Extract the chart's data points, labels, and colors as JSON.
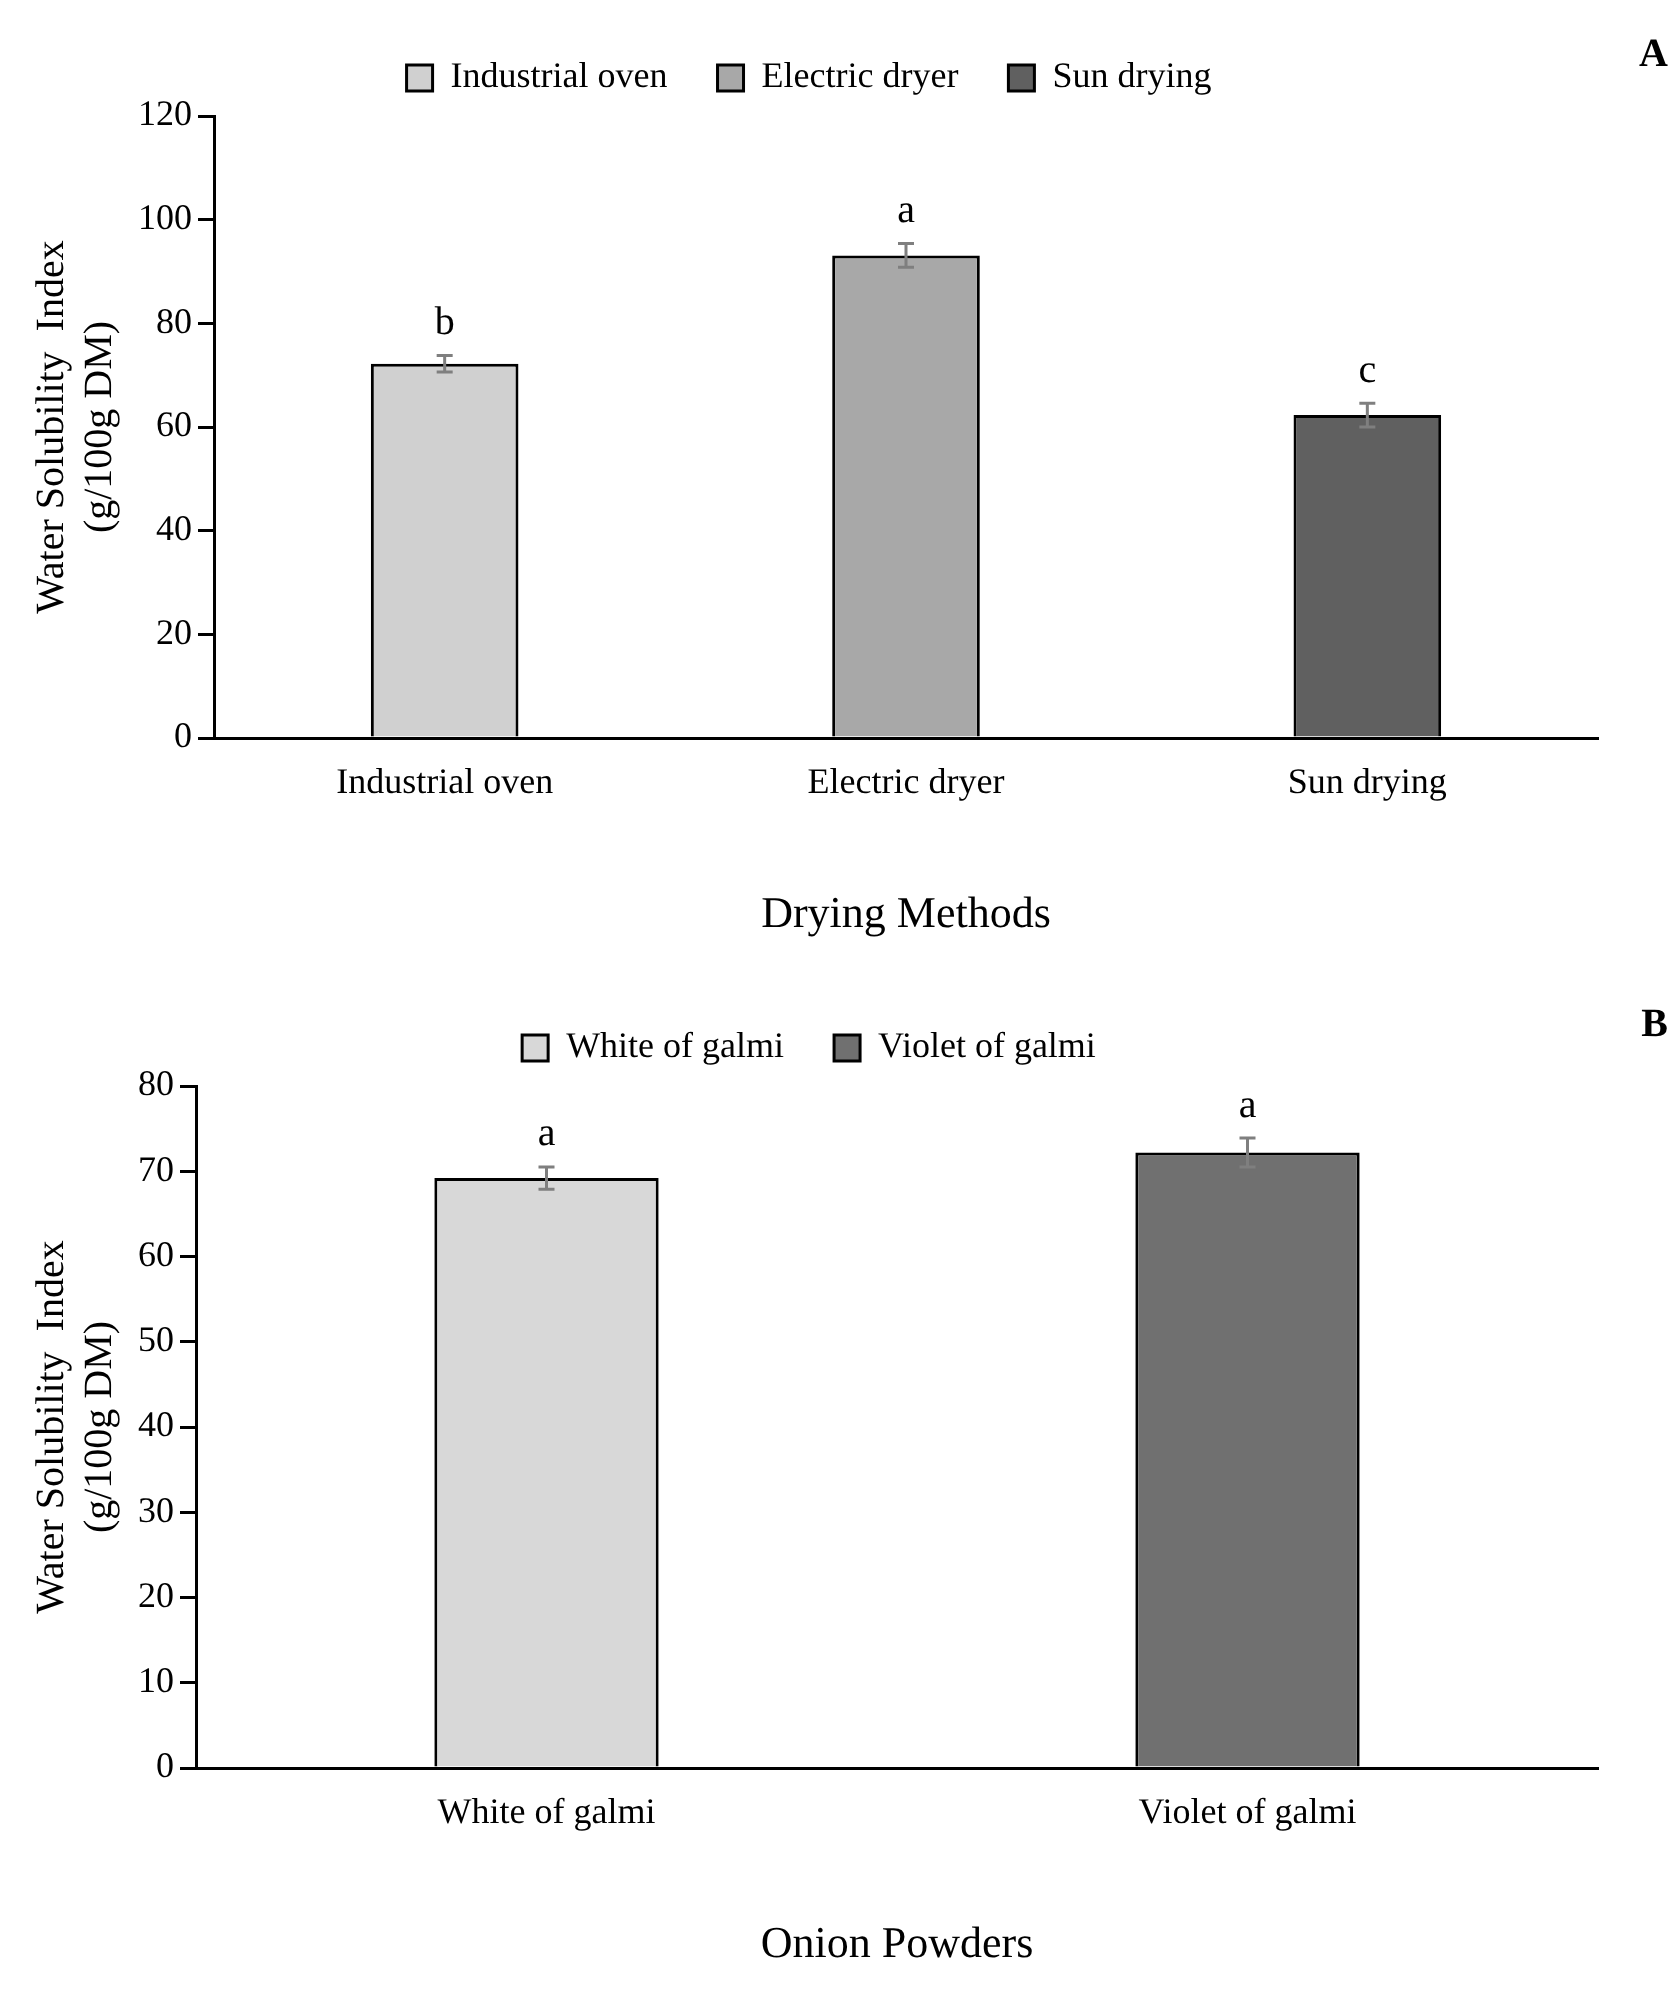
{
  "chart_data": [
    {
      "type": "bar",
      "categories": [
        "Industrial oven",
        "Electric dryer",
        "Sun drying"
      ],
      "series": [
        {
          "name": "Industrial oven",
          "color": "#d0d0d0",
          "values": [
            72.2,
            null,
            null
          ],
          "errors": [
            1.6,
            null,
            null
          ]
        },
        {
          "name": "Electric dryer",
          "color": "#a8a8a8",
          "values": [
            null,
            93.1,
            null
          ],
          "errors": [
            null,
            2.3,
            null
          ]
        },
        {
          "name": "Sun drying",
          "color": "#606060",
          "values": [
            null,
            null,
            62.3
          ],
          "errors": [
            null,
            null,
            2.3
          ]
        }
      ],
      "ylim": [
        0,
        120
      ],
      "yticks": [
        0,
        20,
        40,
        60,
        80,
        100,
        120
      ],
      "xlabel": "Drying Methods",
      "ylabel": "Water Solubility  Index\n(g/100g DM)",
      "legend": "top",
      "grid": false,
      "annotations": [
        {
          "text": "b",
          "x": "Industrial oven",
          "y": 73.8
        },
        {
          "text": "a",
          "x": "Electric dryer",
          "y": 95.4
        },
        {
          "text": "c",
          "x": "Sun drying",
          "y": 64.6
        },
        "A"
      ]
    },
    {
      "type": "bar",
      "categories": [
        "White of galmi",
        "Violet of galmi"
      ],
      "series": [
        {
          "name": "White of galmi",
          "color": "#d8d8d8",
          "values": [
            69.2,
            null
          ],
          "errors": [
            1.3,
            null
          ]
        },
        {
          "name": "Violet of galmi",
          "color": "#707070",
          "values": [
            null,
            72.2
          ],
          "errors": [
            null,
            1.7
          ]
        }
      ],
      "ylim": [
        0,
        80
      ],
      "yticks": [
        0,
        10,
        20,
        30,
        40,
        50,
        60,
        70,
        80
      ],
      "xlabel": "Onion Powders",
      "ylabel": "Water Solubility  Index\n(g/100g DM)",
      "legend": "top",
      "grid": false,
      "annotations": [
        {
          "text": "a",
          "x": "White of galmi",
          "y": 70.5
        },
        {
          "text": "a",
          "x": "Violet of galmi",
          "y": 73.9
        },
        "B"
      ]
    }
  ]
}
